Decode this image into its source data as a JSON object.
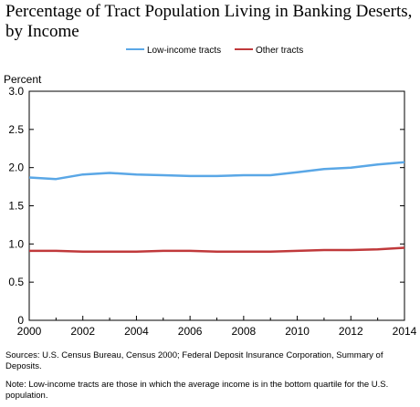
{
  "chart_data": {
    "type": "line",
    "title": "Percentage of Tract Population Living in Banking Deserts, by Income",
    "ylabel": "Percent",
    "xlabel": "",
    "ylim": [
      0,
      3.0
    ],
    "xlim": [
      2000,
      2014
    ],
    "yticks": [
      "0",
      "0.5",
      "1.0",
      "1.5",
      "2.0",
      "2.5",
      "3.0"
    ],
    "xticks": [
      "2000",
      "2002",
      "2004",
      "2006",
      "2008",
      "2010",
      "2012",
      "2014"
    ],
    "x": [
      2000,
      2001,
      2002,
      2003,
      2004,
      2005,
      2006,
      2007,
      2008,
      2009,
      2010,
      2011,
      2012,
      2013,
      2014
    ],
    "series": [
      {
        "name": "Low-income tracts",
        "color": "#5aa7e6",
        "values": [
          1.87,
          1.85,
          1.91,
          1.93,
          1.91,
          1.9,
          1.89,
          1.89,
          1.9,
          1.9,
          1.94,
          1.98,
          2.0,
          2.04,
          2.07
        ]
      },
      {
        "name": "Other tracts",
        "color": "#c0393b",
        "values": [
          0.91,
          0.91,
          0.9,
          0.9,
          0.9,
          0.91,
          0.91,
          0.9,
          0.9,
          0.9,
          0.91,
          0.92,
          0.92,
          0.93,
          0.95
        ]
      }
    ],
    "legend_position": "top-center",
    "grid": false
  },
  "notes": {
    "sources": "Sources: U.S. Census Bureau, Census 2000; Federal Deposit Insurance Corporation, Summary of Deposits.",
    "note": "Note: Low-income tracts are those in which the average income is in the bottom quartile for the U.S. population."
  }
}
